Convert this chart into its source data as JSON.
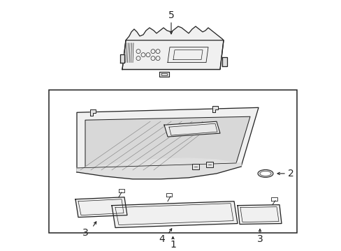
{
  "background_color": "#ffffff",
  "fig_width": 4.89,
  "fig_height": 3.6,
  "dpi": 100,
  "line_color": "#222222",
  "fill_light": "#f0f0f0",
  "fill_mid": "#e0e0e0",
  "fill_dark": "#cccccc"
}
